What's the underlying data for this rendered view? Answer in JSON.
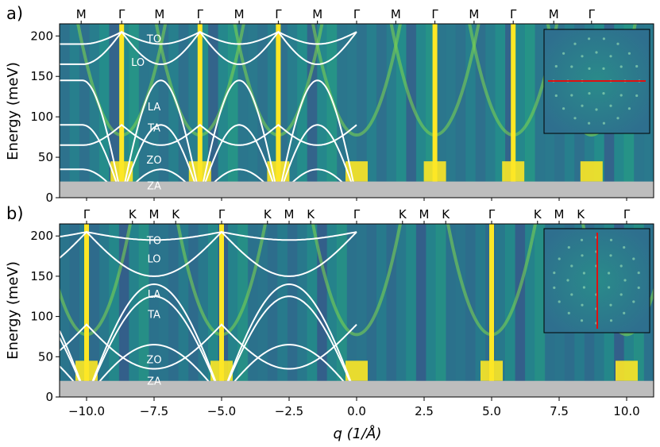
{
  "chart_data": {
    "type": "heatmap",
    "xlabel": "q (1/Å)",
    "xlim": [
      -11.0,
      11.0
    ],
    "x_ticks": [
      "−10.0",
      "−7.5",
      "−5.0",
      "−2.5",
      "0.0",
      "2.5",
      "5.0",
      "7.5",
      "10.0"
    ],
    "x_tick_values": [
      -10.0,
      -7.5,
      -5.0,
      -2.5,
      0.0,
      2.5,
      5.0,
      7.5,
      10.0
    ],
    "colormap": "viridis",
    "shaded_region_color": "#bdbdbd",
    "dispersion_color": "#ffffff",
    "cut_line_color": "#e01010",
    "panels": [
      {
        "label": "a)",
        "ylabel": "Energy (meV)",
        "ylim": [
          0,
          215
        ],
        "y_ticks": [
          "0",
          "50",
          "100",
          "150",
          "200"
        ],
        "y_tick_values": [
          0,
          50,
          100,
          150,
          200
        ],
        "shaded_below_meV": 20,
        "symmetry_points": [
          {
            "label": "M",
            "q": -10.2
          },
          {
            "label": "Γ",
            "q": -8.7
          },
          {
            "label": "M",
            "q": -7.3
          },
          {
            "label": "Γ",
            "q": -5.8
          },
          {
            "label": "M",
            "q": -4.35
          },
          {
            "label": "Γ",
            "q": -2.9
          },
          {
            "label": "M",
            "q": -1.45
          },
          {
            "label": "Γ",
            "q": 0.0
          },
          {
            "label": "M",
            "q": 1.45
          },
          {
            "label": "Γ",
            "q": 2.9
          },
          {
            "label": "M",
            "q": 4.35
          },
          {
            "label": "Γ",
            "q": 5.8
          },
          {
            "label": "M",
            "q": 7.3
          },
          {
            "label": "Γ",
            "q": 8.7
          }
        ],
        "bright_lines_q": [
          -8.7,
          -5.8,
          -2.9,
          2.9,
          5.8
        ],
        "band_labels": [
          {
            "label": "TO",
            "q": -7.5,
            "E": 197
          },
          {
            "label": "LO",
            "q": -8.1,
            "E": 168
          },
          {
            "label": "LA",
            "q": -7.5,
            "E": 113
          },
          {
            "label": "TA",
            "q": -7.5,
            "E": 87
          },
          {
            "label": "ZO",
            "q": -7.5,
            "E": 47
          },
          {
            "label": "ZA",
            "q": -7.5,
            "E": 15
          }
        ],
        "branches": [
          {
            "name": "TO",
            "gamma_meV": 205,
            "zone_meV": 190
          },
          {
            "name": "LO",
            "gamma_meV": 205,
            "zone_meV": 165
          },
          {
            "name": "LA",
            "gamma_meV": 0,
            "zone_meV": 145
          },
          {
            "name": "TA",
            "gamma_meV": 0,
            "zone_meV": 90
          },
          {
            "name": "ZO",
            "gamma_meV": 90,
            "zone_meV": 65
          },
          {
            "name": "ZA",
            "gamma_meV": 0,
            "zone_meV": 35
          }
        ],
        "inset_cut": "horizontal"
      },
      {
        "label": "b)",
        "ylabel": "Energy (meV)",
        "ylim": [
          0,
          215
        ],
        "y_ticks": [
          "0",
          "50",
          "100",
          "150",
          "200"
        ],
        "y_tick_values": [
          0,
          50,
          100,
          150,
          200
        ],
        "shaded_below_meV": 20,
        "symmetry_points": [
          {
            "label": "Γ",
            "q": -10.0
          },
          {
            "label": "K",
            "q": -8.3
          },
          {
            "label": "M",
            "q": -7.5
          },
          {
            "label": "K",
            "q": -6.7
          },
          {
            "label": "Γ",
            "q": -5.0
          },
          {
            "label": "K",
            "q": -3.3
          },
          {
            "label": "M",
            "q": -2.5
          },
          {
            "label": "K",
            "q": -1.7
          },
          {
            "label": "Γ",
            "q": 0.0
          },
          {
            "label": "K",
            "q": 1.7
          },
          {
            "label": "M",
            "q": 2.5
          },
          {
            "label": "K",
            "q": 3.3
          },
          {
            "label": "Γ",
            "q": 5.0
          },
          {
            "label": "K",
            "q": 6.7
          },
          {
            "label": "M",
            "q": 7.5
          },
          {
            "label": "K",
            "q": 8.3
          },
          {
            "label": "Γ",
            "q": 10.0
          }
        ],
        "bright_lines_q": [
          -10.0,
          -5.0,
          5.0
        ],
        "band_labels": [
          {
            "label": "TO",
            "q": -7.5,
            "E": 195
          },
          {
            "label": "LO",
            "q": -7.5,
            "E": 172
          },
          {
            "label": "LA",
            "q": -7.5,
            "E": 128
          },
          {
            "label": "TA",
            "q": -7.5,
            "E": 103
          },
          {
            "label": "ZO",
            "q": -7.5,
            "E": 47
          },
          {
            "label": "ZA",
            "q": -7.5,
            "E": 20
          }
        ],
        "branches": [
          {
            "name": "TO",
            "gamma_meV": 205,
            "zone_meV": 195
          },
          {
            "name": "LO",
            "gamma_meV": 205,
            "zone_meV": 150
          },
          {
            "name": "LA",
            "gamma_meV": 0,
            "zone_meV": 140
          },
          {
            "name": "TA",
            "gamma_meV": 0,
            "zone_meV": 125
          },
          {
            "name": "ZO",
            "gamma_meV": 90,
            "zone_meV": 35
          },
          {
            "name": "ZA",
            "gamma_meV": 0,
            "zone_meV": 65
          }
        ],
        "inset_cut": "vertical"
      }
    ]
  }
}
